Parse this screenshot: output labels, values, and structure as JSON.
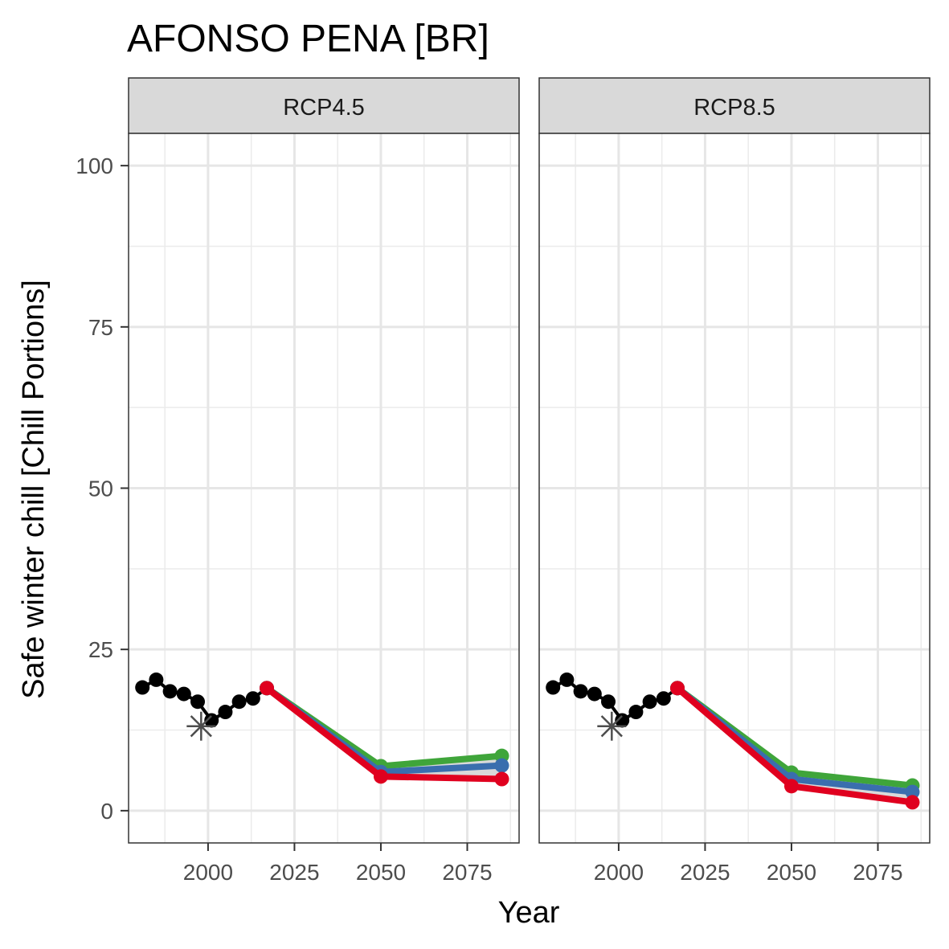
{
  "chart_data": {
    "type": "line",
    "title": "AFONSO PENA [BR]",
    "xlabel": "Year",
    "ylabel": "Safe winter chill [Chill Portions]",
    "xlim": [
      1977,
      2090
    ],
    "ylim": [
      -5,
      105
    ],
    "x_ticks": [
      2000,
      2025,
      2050,
      2075
    ],
    "x_tick_labels": [
      "2000",
      "2025",
      "2050",
      "2075"
    ],
    "y_ticks": [
      0,
      25,
      50,
      75,
      100
    ],
    "y_tick_labels": [
      "0",
      "25",
      "50",
      "75",
      "100"
    ],
    "grid": true,
    "legend": "none",
    "series_colors": {
      "historic": "#000000",
      "green": "#3fa53a",
      "blue": "#3a6eae",
      "red": "#e0001f",
      "observed_marker": "#4d4d4d",
      "ribbon": "#d9d9d9"
    },
    "panels": [
      {
        "strip": "RCP4.5",
        "historic": {
          "x": [
            1981,
            1985,
            1989,
            1993,
            1997,
            2001,
            2005,
            2009,
            2013,
            2017
          ],
          "y": [
            19.1,
            20.3,
            18.5,
            18.1,
            16.9,
            14.0,
            15.3,
            16.9,
            17.4,
            19.0
          ]
        },
        "observed": {
          "x": [
            1998
          ],
          "y": [
            13.1
          ]
        },
        "scenarios": [
          {
            "color_key": "green",
            "x": [
              2017,
              2050,
              2085
            ],
            "y": [
              19.0,
              6.9,
              8.5
            ]
          },
          {
            "color_key": "blue",
            "x": [
              2017,
              2050,
              2085
            ],
            "y": [
              19.0,
              6.0,
              7.0
            ]
          },
          {
            "color_key": "red",
            "x": [
              2017,
              2050,
              2085
            ],
            "y": [
              19.0,
              5.3,
              4.9
            ]
          }
        ]
      },
      {
        "strip": "RCP8.5",
        "historic": {
          "x": [
            1981,
            1985,
            1989,
            1993,
            1997,
            2001,
            2005,
            2009,
            2013,
            2017
          ],
          "y": [
            19.1,
            20.3,
            18.5,
            18.1,
            16.9,
            14.0,
            15.3,
            16.9,
            17.4,
            19.0
          ]
        },
        "observed": {
          "x": [
            1998
          ],
          "y": [
            13.1
          ]
        },
        "scenarios": [
          {
            "color_key": "green",
            "x": [
              2017,
              2050,
              2085
            ],
            "y": [
              19.0,
              5.9,
              3.9
            ]
          },
          {
            "color_key": "blue",
            "x": [
              2017,
              2050,
              2085
            ],
            "y": [
              19.0,
              4.9,
              2.9
            ]
          },
          {
            "color_key": "red",
            "x": [
              2017,
              2050,
              2085
            ],
            "y": [
              19.0,
              3.8,
              1.3
            ]
          }
        ]
      }
    ]
  }
}
